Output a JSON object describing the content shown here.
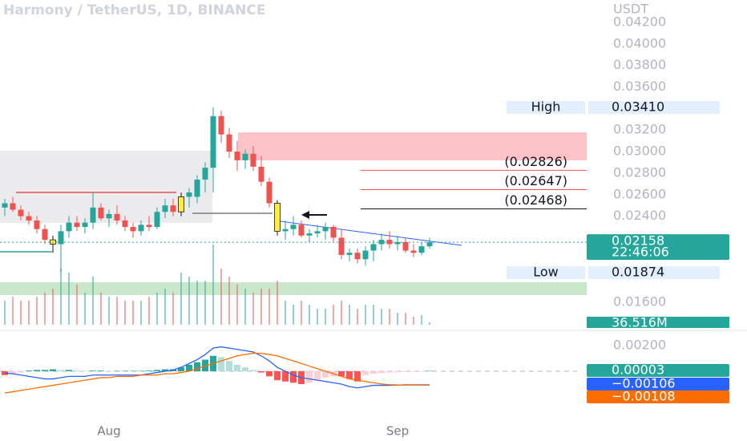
{
  "chart_data": {
    "type": "candlestick",
    "title": "Harmony / TetherUS, 1D, BINANCE",
    "unit": "USDT",
    "categories": [
      null,
      null,
      null,
      null,
      null,
      null,
      null,
      null,
      null,
      null,
      null,
      null,
      null,
      "Aug",
      null,
      null,
      null,
      null,
      null,
      null,
      null,
      null,
      null,
      null,
      null,
      null,
      null,
      null,
      null,
      null,
      null,
      null,
      null,
      null,
      null,
      null,
      null,
      null,
      null,
      null,
      null,
      null,
      null,
      null,
      null,
      null,
      null,
      null,
      null,
      "Sep",
      null,
      null,
      null,
      null
    ],
    "open": [
      0.0248,
      0.0252,
      0.0246,
      0.024,
      0.0236,
      0.0228,
      0.0218,
      0.0214,
      0.0226,
      0.0234,
      0.023,
      0.0234,
      0.0248,
      0.0238,
      0.0242,
      0.0236,
      0.023,
      0.0226,
      0.0232,
      0.023,
      0.0244,
      0.025,
      0.0244,
      0.0258,
      0.0258,
      0.0274,
      0.0285,
      0.0333,
      0.0316,
      0.03,
      0.0292,
      0.0298,
      0.0286,
      0.0272,
      0.0252,
      0.0226,
      0.0228,
      0.0232,
      0.0222,
      0.0224,
      0.0226,
      0.023,
      0.022,
      0.0204,
      0.0206,
      0.02,
      0.0208,
      0.0214,
      0.0218,
      0.0214,
      0.0216,
      0.0208,
      0.0206,
      0.0212
    ],
    "high": [
      0.0256,
      0.0258,
      0.025,
      0.0244,
      0.024,
      0.0232,
      0.0222,
      0.0232,
      0.024,
      0.024,
      0.0238,
      0.0262,
      0.0252,
      0.0246,
      0.025,
      0.024,
      0.0234,
      0.0236,
      0.024,
      0.0248,
      0.0256,
      0.0256,
      0.0262,
      0.0266,
      0.0278,
      0.029,
      0.0341,
      0.0338,
      0.0322,
      0.031,
      0.0302,
      0.0305,
      0.0296,
      0.0276,
      0.0255,
      0.0236,
      0.024,
      0.0236,
      0.0228,
      0.0232,
      0.0234,
      0.0232,
      0.0228,
      0.021,
      0.021,
      0.0212,
      0.0218,
      0.0224,
      0.0226,
      0.0222,
      0.022,
      0.0214,
      0.0216,
      0.022
    ],
    "low": [
      0.024,
      0.0244,
      0.0236,
      0.0232,
      0.0224,
      0.0214,
      0.0206,
      0.0188,
      0.022,
      0.0226,
      0.0224,
      0.0228,
      0.0236,
      0.023,
      0.0232,
      0.0226,
      0.022,
      0.0222,
      0.0226,
      0.0228,
      0.0238,
      0.024,
      0.024,
      0.0248,
      0.0252,
      0.0262,
      0.0262,
      0.0308,
      0.0294,
      0.0282,
      0.0284,
      0.0282,
      0.0268,
      0.0248,
      0.0222,
      0.0218,
      0.0222,
      0.022,
      0.0216,
      0.022,
      0.0218,
      0.0216,
      0.02,
      0.0198,
      0.0196,
      0.0194,
      0.0198,
      0.0208,
      0.021,
      0.0208,
      0.0206,
      0.0202,
      0.0204,
      0.021
    ],
    "close": [
      0.0252,
      0.0246,
      0.024,
      0.0236,
      0.0228,
      0.0218,
      0.0214,
      0.0226,
      0.0234,
      0.023,
      0.0234,
      0.0248,
      0.0238,
      0.0242,
      0.0236,
      0.023,
      0.0226,
      0.0232,
      0.023,
      0.0244,
      0.025,
      0.0244,
      0.0258,
      0.0262,
      0.0274,
      0.0285,
      0.0333,
      0.0316,
      0.03,
      0.0292,
      0.0298,
      0.0286,
      0.0272,
      0.0252,
      0.0226,
      0.0228,
      0.0232,
      0.0222,
      0.0224,
      0.0226,
      0.023,
      0.022,
      0.0204,
      0.0206,
      0.02,
      0.0208,
      0.0214,
      0.0218,
      0.0214,
      0.0216,
      0.0208,
      0.0206,
      0.0212,
      0.02158
    ],
    "up_color": "#26a69a",
    "down_color": "#ef5350",
    "highlighted": [
      6,
      22,
      34
    ],
    "highlight_color": "#ffeb3b",
    "ylim": [
      0.01391,
      0.04409
    ],
    "yticks": [
      {
        "value": 0.042,
        "label": "0.04200"
      },
      {
        "value": 0.04,
        "label": "0.04000"
      },
      {
        "value": 0.038,
        "label": "0.03800"
      },
      {
        "value": 0.036,
        "label": "0.03600"
      },
      {
        "value": 0.032,
        "label": "0.03200"
      },
      {
        "value": 0.03,
        "label": "0.03000"
      },
      {
        "value": 0.028,
        "label": "0.02800"
      },
      {
        "value": 0.026,
        "label": "0.02600"
      },
      {
        "value": 0.024,
        "label": "0.02400"
      },
      {
        "value": 0.016,
        "label": "0.01600"
      }
    ],
    "price_labels": [
      {
        "name": "High",
        "value": 0.0341,
        "label": "0.03410"
      },
      {
        "name": "Low",
        "value": 0.01874,
        "label": "0.01874"
      }
    ],
    "last_price": {
      "value": 0.02158,
      "label": "0.02158",
      "countdown": "22:46:06",
      "color": "#26a69a"
    },
    "levels": [
      {
        "value": 0.02826,
        "label": "(0.02826)",
        "color": "#ef5350"
      },
      {
        "value": 0.02647,
        "label": "(0.02647)",
        "color": "#ef5350"
      },
      {
        "value": 0.02468,
        "label": "(0.02468)",
        "color": "#131722"
      }
    ],
    "zones": [
      {
        "from": 0.02337,
        "to": 0.0301,
        "color": "rgba(120,123,134,0.15)"
      },
      {
        "from": 0.02919,
        "to": 0.03179,
        "color": "rgba(242,54,69,0.3)"
      },
      {
        "from": 0.01667,
        "to": 0.01786,
        "color": "rgba(76,175,80,0.3)"
      }
    ],
    "volume": {
      "values": [
        360,
        420,
        360,
        360,
        420,
        480,
        540,
        840,
        780,
        600,
        480,
        720,
        480,
        420,
        420,
        360,
        360,
        360,
        420,
        480,
        540,
        480,
        780,
        720,
        660,
        660,
        1200,
        840,
        720,
        600,
        540,
        480,
        540,
        540,
        660,
        360,
        300,
        360,
        300,
        240,
        240,
        300,
        360,
        300,
        240,
        300,
        300,
        240,
        240,
        180,
        180,
        120,
        144,
        36.516
      ],
      "vlim": [
        0,
        4860
      ],
      "value_label": "36.516M",
      "color": "#26a69a"
    },
    "macd": {
      "ylim": [
        -0.00419,
        0.00331
      ],
      "yticks": [
        {
          "value": 0.002,
          "label": "0.00200"
        }
      ],
      "histogram": {
        "values": [
          -0.0003,
          -0.0002,
          -0.0001,
          5e-05,
          0.0001,
          0.0001,
          0.00015,
          0.0001,
          0.0001,
          5e-05,
          3e-05,
          5e-05,
          5e-05,
          3e-05,
          3e-05,
          3e-05,
          3e-05,
          3e-05,
          5e-05,
          0.0001,
          0.00015,
          0.00015,
          0.0003,
          0.0005,
          0.0007,
          0.0009,
          0.0012,
          0.0011,
          0.0008,
          0.0005,
          0.0003,
          0.0001,
          -0.0001,
          -0.0004,
          -0.0007,
          -0.0008,
          -0.0009,
          -0.001,
          -0.0009,
          -0.0007,
          -0.0005,
          -0.0004,
          -0.0004,
          -0.0006,
          -0.0008,
          -0.0003,
          -0.0002,
          -0.00015,
          -0.0001,
          -8e-05,
          -6e-05,
          -4e-05,
          -2e-05,
          3e-05
        ],
        "value_label": "0.00003",
        "colors": [
          "#26a69a",
          "#b2dfdb",
          "#ff5252",
          "#ffcdd2"
        ]
      },
      "macd_line": {
        "color": "#2962ff",
        "value_label": "−0.00106",
        "values": [
          -0.00015,
          -0.0002,
          -0.0003,
          -0.0004,
          -0.0005,
          -0.0006,
          -0.0006,
          -0.0005,
          -0.0004,
          -0.0004,
          -0.0004,
          -0.0003,
          -0.0003,
          -0.0003,
          -0.0003,
          -0.0003,
          -0.0003,
          -0.0003,
          -0.0002,
          -0.0001,
          0,
          0.0001,
          0.0003,
          0.0006,
          0.0009,
          0.0013,
          0.0018,
          0.0019,
          0.0018,
          0.0017,
          0.0016,
          0.0015,
          0.0012,
          0.0008,
          0.0003,
          0,
          -0.0003,
          -0.0005,
          -0.0006,
          -0.0007,
          -0.0008,
          -0.0009,
          -0.001,
          -0.0012,
          -0.0013,
          -0.0012,
          -0.0011,
          -0.0011,
          -0.0011,
          -0.00108,
          -0.00106,
          -0.00106,
          -0.00106,
          -0.00106
        ]
      },
      "signal_line": {
        "color": "#ff6d00",
        "value_label": "−0.00108",
        "values": [
          -0.0017,
          -0.0016,
          -0.0015,
          -0.0014,
          -0.0013,
          -0.0012,
          -0.0011,
          -0.001,
          -0.0009,
          -0.0008,
          -0.0007,
          -0.0006,
          -0.0005,
          -0.0005,
          -0.0004,
          -0.0004,
          -0.0004,
          -0.0003,
          -0.0003,
          -0.0003,
          -0.0002,
          -0.0002,
          -0.0001,
          0,
          0.0002,
          0.0004,
          0.0006,
          0.0008,
          0.001,
          0.0012,
          0.0013,
          0.0014,
          0.0014,
          0.0013,
          0.0012,
          0.001,
          0.0008,
          0.0006,
          0.0004,
          0.0002,
          0,
          -0.0002,
          -0.0004,
          -0.0006,
          -0.0007,
          -0.0008,
          -0.0009,
          -0.001,
          -0.00105,
          -0.00107,
          -0.00108,
          -0.00108,
          -0.00108,
          -0.00108
        ]
      }
    }
  }
}
